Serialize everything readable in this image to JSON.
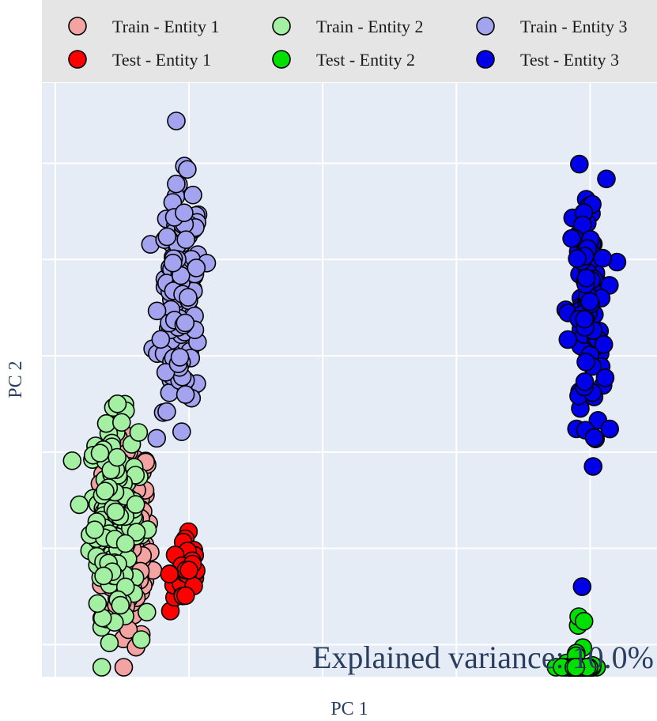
{
  "chart_data": {
    "type": "scatter",
    "title": "",
    "xlabel": "PC 1",
    "ylabel": "PC 2",
    "xlim": [
      -0.05,
      2.25
    ],
    "ylim": [
      -0.8,
      2.9
    ],
    "xticks": [
      0,
      0.5,
      1,
      1.5,
      2
    ],
    "yticks": [
      -0.6,
      0,
      0.6,
      1.2,
      1.8,
      2.4
    ],
    "tick_labels_visible": false,
    "grid": true,
    "legend_position": "top",
    "annotation": "Explained variance: 10.0%",
    "series": [
      {
        "name": "Train - Entity 1",
        "color": "#f4a3a3",
        "cluster": {
          "cx": 0.27,
          "cy": 0.05,
          "sx": 0.045,
          "sy": 0.33,
          "n": 160
        }
      },
      {
        "name": "Test - Entity 1",
        "color": "#ff0000",
        "cluster": {
          "cx": 0.49,
          "cy": -0.15,
          "sx": 0.03,
          "sy": 0.13,
          "n": 40
        }
      },
      {
        "name": "Train - Entity 2",
        "color": "#a3f0a3",
        "cluster": {
          "cx": 0.22,
          "cy": 0.2,
          "sx": 0.045,
          "sy": 0.3,
          "n": 160
        }
      },
      {
        "name": "Test - Entity 2",
        "color": "#00e000",
        "cluster": {
          "cx": 1.96,
          "cy": -1.1,
          "sx": 0.03,
          "sy": 0.36,
          "n": 80
        }
      },
      {
        "name": "Train - Entity 3",
        "color": "#a3a3f0",
        "cluster": {
          "cx": 0.47,
          "cy": 1.55,
          "sx": 0.04,
          "sy": 0.34,
          "n": 160
        }
      },
      {
        "name": "Test - Entity 3",
        "color": "#0000e8",
        "cluster": {
          "cx": 1.99,
          "cy": 1.45,
          "sx": 0.035,
          "sy": 0.42,
          "n": 100
        }
      }
    ]
  }
}
